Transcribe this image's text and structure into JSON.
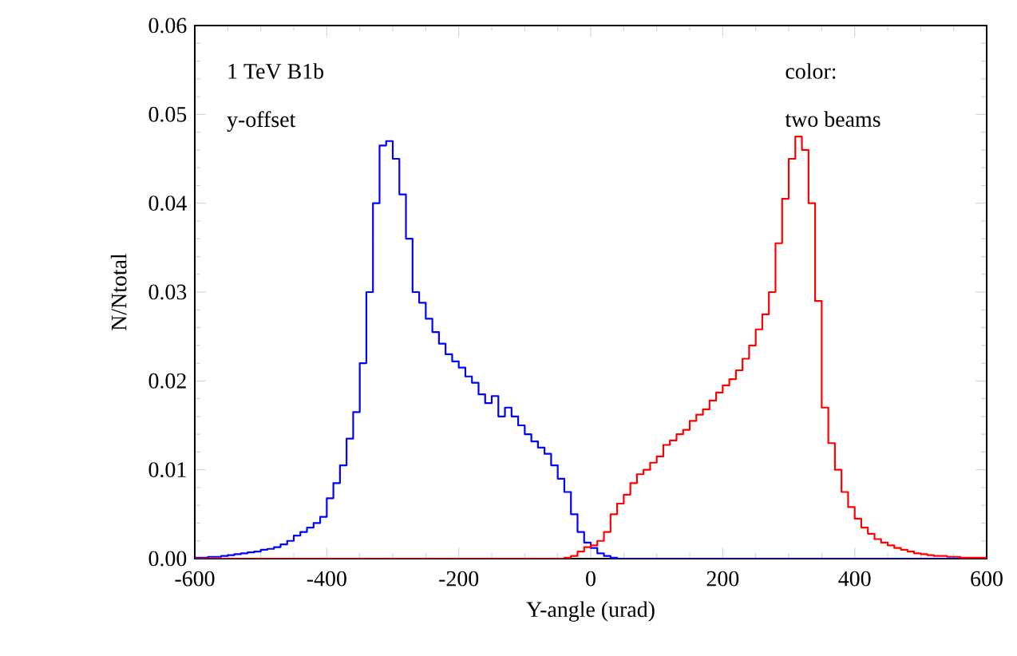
{
  "chart_data": {
    "type": "histogram",
    "xlabel": "Y-angle (urad)",
    "ylabel": "N/Ntotal",
    "annotations": [
      "1 TeV B1b",
      "y-offset",
      "color:",
      "two beams"
    ],
    "bins": [
      -600,
      -590,
      -580,
      -570,
      -560,
      -550,
      -540,
      -530,
      -520,
      -510,
      -500,
      -490,
      -480,
      -470,
      -460,
      -450,
      -440,
      -430,
      -420,
      -410,
      -400,
      -390,
      -380,
      -370,
      -360,
      -350,
      -340,
      -330,
      -320,
      -310,
      -300,
      -290,
      -280,
      -270,
      -260,
      -250,
      -240,
      -230,
      -220,
      -210,
      -200,
      -190,
      -180,
      -170,
      -160,
      -150,
      -140,
      -130,
      -120,
      -110,
      -100,
      -90,
      -80,
      -70,
      -60,
      -50,
      -40,
      -30,
      -20,
      -10,
      0,
      10,
      20,
      30,
      40,
      50,
      60,
      70,
      80,
      90,
      100,
      110,
      120,
      130,
      140,
      150,
      160,
      170,
      180,
      190,
      200,
      210,
      220,
      230,
      240,
      250,
      260,
      270,
      280,
      290,
      300,
      310,
      320,
      330,
      340,
      350,
      360,
      370,
      380,
      390,
      400,
      410,
      420,
      430,
      440,
      450,
      460,
      470,
      480,
      490,
      500,
      510,
      520,
      530,
      540,
      550,
      560,
      570,
      580,
      590,
      600
    ],
    "series": [
      {
        "color": "#0000ff",
        "values": [
          0.0001,
          0.0001,
          0.0002,
          0.0002,
          0.0003,
          0.0004,
          0.0005,
          0.0006,
          0.0007,
          0.0008,
          0.001,
          0.0011,
          0.0013,
          0.0016,
          0.002,
          0.0026,
          0.003,
          0.0035,
          0.004,
          0.0047,
          0.0068,
          0.0085,
          0.0105,
          0.0135,
          0.0165,
          0.022,
          0.03,
          0.04,
          0.0465,
          0.047,
          0.045,
          0.041,
          0.036,
          0.03,
          0.0288,
          0.027,
          0.0255,
          0.0242,
          0.023,
          0.0222,
          0.0215,
          0.0205,
          0.0198,
          0.0185,
          0.0175,
          0.0183,
          0.016,
          0.017,
          0.016,
          0.015,
          0.014,
          0.0132,
          0.0125,
          0.0118,
          0.0105,
          0.009,
          0.0075,
          0.005,
          0.003,
          0.0018,
          0.0012,
          0.0006,
          0.0003,
          0.0001,
          0,
          0,
          0,
          0,
          0,
          0,
          0,
          0,
          0,
          0,
          0,
          0,
          0,
          0,
          0,
          0,
          0,
          0,
          0,
          0,
          0,
          0,
          0,
          0,
          0,
          0,
          0,
          0,
          0,
          0,
          0,
          0,
          0,
          0,
          0,
          0,
          0,
          0,
          0,
          0,
          0,
          0,
          0,
          0,
          0,
          0,
          0,
          0,
          0,
          0,
          0,
          0,
          0,
          0,
          0,
          0
        ]
      },
      {
        "color": "#ff0000",
        "values": [
          0,
          0,
          0,
          0,
          0,
          0,
          0,
          0,
          0,
          0,
          0,
          0,
          0,
          0,
          0,
          0,
          0,
          0,
          0,
          0,
          0,
          0,
          0,
          0,
          0,
          0,
          0,
          0,
          0,
          0,
          0,
          0,
          0,
          0,
          0,
          0,
          0,
          0,
          0,
          0,
          0,
          0,
          0,
          0,
          0,
          0,
          0,
          0,
          0,
          0,
          0,
          0,
          0,
          0,
          0,
          0,
          0.0001,
          0.0003,
          0.0008,
          0.0013,
          0.0015,
          0.002,
          0.003,
          0.005,
          0.0062,
          0.0072,
          0.0085,
          0.0095,
          0.01,
          0.0108,
          0.0115,
          0.0128,
          0.0133,
          0.014,
          0.0145,
          0.0155,
          0.0162,
          0.0168,
          0.0178,
          0.0187,
          0.0195,
          0.0202,
          0.0212,
          0.0225,
          0.024,
          0.0258,
          0.0275,
          0.03,
          0.0355,
          0.0405,
          0.045,
          0.0475,
          0.046,
          0.04,
          0.029,
          0.017,
          0.013,
          0.01,
          0.0075,
          0.0058,
          0.0045,
          0.0035,
          0.0028,
          0.0022,
          0.0018,
          0.0015,
          0.0012,
          0.001,
          0.0008,
          0.0006,
          0.0005,
          0.0004,
          0.0003,
          0.0003,
          0.0002,
          0.0002,
          0.0001,
          0.0001,
          0.0001,
          0.0001
        ]
      }
    ],
    "xlim": [
      -600,
      600
    ],
    "ylim": [
      0,
      0.06
    ],
    "xticks": [
      -600,
      -400,
      -200,
      0,
      200,
      400,
      600
    ],
    "yticks": [
      {
        "value": 0,
        "label": "0.00"
      },
      0.01,
      0.02,
      0.03,
      0.04,
      0.05,
      0.06
    ]
  }
}
